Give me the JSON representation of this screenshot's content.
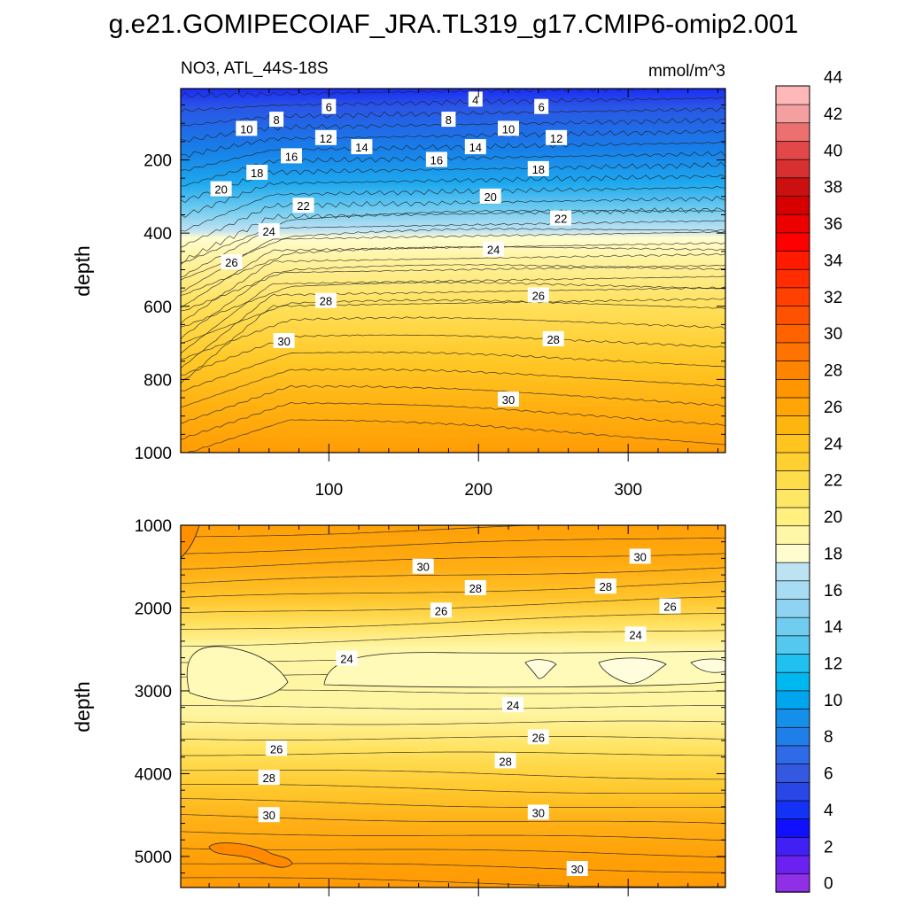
{
  "figure": {
    "title": "g.e21.GOMIPECOIAF_JRA.TL319_g17.CMIP6-omip2.001",
    "left_subtitle": "NO3, ATL_44S-18S",
    "units": "mmol/m^3"
  },
  "chart_data": [
    {
      "type": "contour",
      "panel": "upper",
      "variable": "NO3",
      "region": "ATL_44S-18S",
      "units": "mmol/m^3",
      "xlabel": "",
      "ylabel": "depth",
      "xlim": [
        1,
        365
      ],
      "ylim": [
        1000,
        5
      ],
      "y_reversed": true,
      "x_tick_labels": [
        "100",
        "200",
        "300"
      ],
      "y_tick_labels": [
        "200",
        "400",
        "600",
        "800",
        "1000"
      ],
      "contour_labels": [
        {
          "text": "4",
          "x": 198,
          "y": 35
        },
        {
          "text": "6",
          "x": 100,
          "y": 55
        },
        {
          "text": "6",
          "x": 242,
          "y": 55
        },
        {
          "text": "8",
          "x": 65,
          "y": 90
        },
        {
          "text": "8",
          "x": 180,
          "y": 90
        },
        {
          "text": "10",
          "x": 45,
          "y": 115
        },
        {
          "text": "10",
          "x": 220,
          "y": 115
        },
        {
          "text": "12",
          "x": 98,
          "y": 140
        },
        {
          "text": "12",
          "x": 252,
          "y": 140
        },
        {
          "text": "14",
          "x": 122,
          "y": 165
        },
        {
          "text": "14",
          "x": 198,
          "y": 165
        },
        {
          "text": "16",
          "x": 75,
          "y": 190
        },
        {
          "text": "16",
          "x": 172,
          "y": 200
        },
        {
          "text": "18",
          "x": 52,
          "y": 235
        },
        {
          "text": "18",
          "x": 240,
          "y": 225
        },
        {
          "text": "20",
          "x": 28,
          "y": 280
        },
        {
          "text": "20",
          "x": 208,
          "y": 300
        },
        {
          "text": "22",
          "x": 83,
          "y": 325
        },
        {
          "text": "22",
          "x": 255,
          "y": 360
        },
        {
          "text": "24",
          "x": 60,
          "y": 395
        },
        {
          "text": "24",
          "x": 210,
          "y": 445
        },
        {
          "text": "26",
          "x": 35,
          "y": 480
        },
        {
          "text": "26",
          "x": 240,
          "y": 570
        },
        {
          "text": "28",
          "x": 98,
          "y": 585
        },
        {
          "text": "28",
          "x": 250,
          "y": 690
        },
        {
          "text": "30",
          "x": 70,
          "y": 695
        },
        {
          "text": "30",
          "x": 220,
          "y": 855
        }
      ]
    },
    {
      "type": "contour",
      "panel": "lower",
      "variable": "NO3",
      "region": "ATL_44S-18S",
      "units": "mmol/m^3",
      "xlabel": "",
      "ylabel": "depth",
      "xlim": [
        1,
        365
      ],
      "ylim": [
        5375,
        1000
      ],
      "y_reversed": true,
      "y_tick_labels": [
        "1000",
        "2000",
        "3000",
        "4000",
        "5000"
      ],
      "contour_labels": [
        {
          "text": "30",
          "x": 163,
          "y": 1500
        },
        {
          "text": "30",
          "x": 308,
          "y": 1380
        },
        {
          "text": "28",
          "x": 198,
          "y": 1760
        },
        {
          "text": "28",
          "x": 285,
          "y": 1740
        },
        {
          "text": "26",
          "x": 175,
          "y": 2030
        },
        {
          "text": "26",
          "x": 328,
          "y": 1980
        },
        {
          "text": "24",
          "x": 305,
          "y": 2320
        },
        {
          "text": "24",
          "x": 112,
          "y": 2610
        },
        {
          "text": "24",
          "x": 223,
          "y": 3170
        },
        {
          "text": "26",
          "x": 240,
          "y": 3560
        },
        {
          "text": "26",
          "x": 65,
          "y": 3700
        },
        {
          "text": "28",
          "x": 218,
          "y": 3850
        },
        {
          "text": "28",
          "x": 60,
          "y": 4050
        },
        {
          "text": "30",
          "x": 60,
          "y": 4500
        },
        {
          "text": "30",
          "x": 240,
          "y": 4470
        },
        {
          "text": "30",
          "x": 266,
          "y": 5150
        }
      ]
    }
  ],
  "colorbar": {
    "tick_labels": [
      "0",
      "2",
      "4",
      "6",
      "8",
      "10",
      "12",
      "14",
      "16",
      "18",
      "20",
      "22",
      "24",
      "26",
      "28",
      "30",
      "32",
      "34",
      "36",
      "38",
      "40",
      "42",
      "44"
    ],
    "colors": [
      "#8f2fe6",
      "#6b22f0",
      "#4020f5",
      "#1010ff",
      "#1432f5",
      "#2847e6",
      "#3458e0",
      "#2f6ae8",
      "#1f7ee8",
      "#1490ea",
      "#00a5ee",
      "#00b8f0",
      "#20c0f0",
      "#55c8f0",
      "#70cdf0",
      "#8ed4f2",
      "#a8dcf2",
      "#bde3f3",
      "#fffdcf",
      "#fff7a8",
      "#fff080",
      "#ffe766",
      "#ffdc4a",
      "#ffd031",
      "#ffc420",
      "#ffb510",
      "#ffa505",
      "#ff9500",
      "#ff8500",
      "#ff7400",
      "#ff6300",
      "#ff5200",
      "#ff4000",
      "#ff2d00",
      "#ff1a00",
      "#ff0000",
      "#ec0000",
      "#d60000",
      "#cc1010",
      "#d83030",
      "#e24848",
      "#ec7070",
      "#f5a0a0",
      "#ffb8b8"
    ]
  }
}
